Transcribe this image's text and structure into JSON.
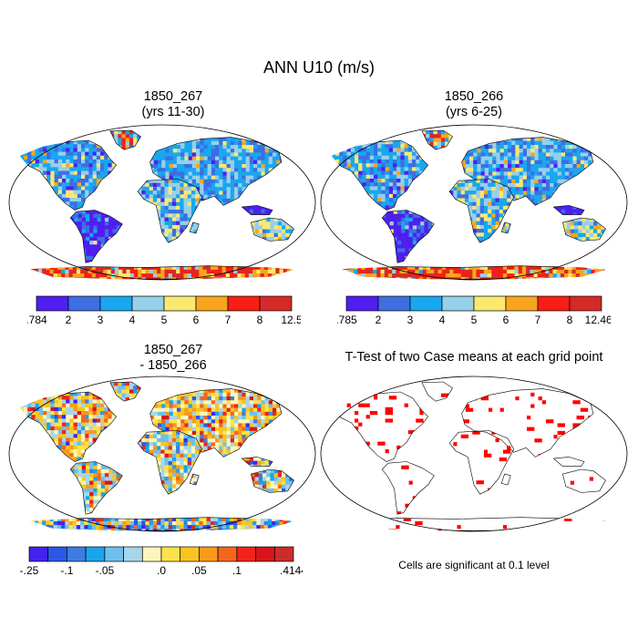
{
  "title": "ANN U10 (m/s)",
  "colors": {
    "ocean": "#ffffff",
    "outline": "#000000",
    "signif": "#ff0000",
    "scale12": [
      "#4f1ff0",
      "#3d6ee2",
      "#1aa6f0",
      "#98cfe9",
      "#fbe870",
      "#f8a51c",
      "#f71f14",
      "#d42a28"
    ],
    "scale14": [
      "#4422ee",
      "#2b58e6",
      "#3e7ce0",
      "#1aa3ee",
      "#6ec0ec",
      "#a6d6ea",
      "#fbf6bd",
      "#fde24a",
      "#f9c422",
      "#f99a1a",
      "#f6651c",
      "#f1241a",
      "#d9141b",
      "#cc2b2b"
    ]
  },
  "panels": [
    {
      "id": "p1",
      "title_line1": "1850_267",
      "title_line2": "(yrs 11-30)",
      "palette": "scale12",
      "colorbar": {
        "labels": [
          ".784",
          "2",
          "3",
          "4",
          "5",
          "6",
          "7",
          "8",
          "12.5"
        ]
      }
    },
    {
      "id": "p2",
      "title_line1": "1850_266",
      "title_line2": "(yrs 6-25)",
      "palette": "scale12",
      "colorbar": {
        "labels": [
          ".785",
          "2",
          "3",
          "4",
          "5",
          "6",
          "7",
          "8",
          "12.462"
        ]
      }
    },
    {
      "id": "p3",
      "title_line1": "1850_267",
      "title_line2": "- 1850_266",
      "palette": "scale14",
      "colorbar": {
        "labels": [
          "-.25",
          "",
          "-.1",
          "",
          "-.05",
          "",
          "",
          ".0",
          "",
          ".05",
          "",
          ".1",
          "",
          "",
          ".4144"
        ]
      }
    },
    {
      "id": "p4",
      "title_line1": "T-Test of two Case means at each grid point",
      "title_line2": "",
      "palette": "signif",
      "note": "Cells are significant at 0.1 level"
    }
  ],
  "chart_data": [
    {
      "type": "heatmap",
      "title": "1850_267 (yrs 11-30)",
      "projection": "robinson",
      "levels": [
        0.784,
        2,
        3,
        4,
        5,
        6,
        7,
        8,
        12.5
      ],
      "range": [
        0.784,
        12.5
      ]
    },
    {
      "type": "heatmap",
      "title": "1850_266 (yrs 6-25)",
      "projection": "robinson",
      "levels": [
        0.785,
        2,
        3,
        4,
        5,
        6,
        7,
        8,
        12.462
      ],
      "range": [
        0.785,
        12.462
      ]
    },
    {
      "type": "heatmap",
      "title": "1850_267 - 1850_266",
      "projection": "robinson",
      "levels": [
        -0.25,
        -0.1,
        -0.05,
        0.0,
        0.05,
        0.1,
        0.4144
      ],
      "range": [
        -0.25,
        0.4144
      ]
    },
    {
      "type": "heatmap",
      "title": "T-Test of two Case means at each grid point",
      "projection": "robinson",
      "significance_level": 0.1
    }
  ]
}
